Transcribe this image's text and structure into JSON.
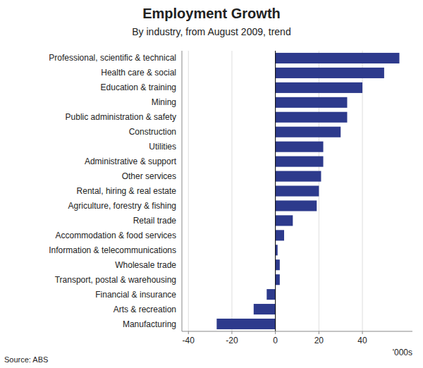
{
  "chart_data": {
    "type": "bar",
    "orientation": "horizontal",
    "title": "Employment Growth",
    "subtitle": "By industry, from August 2009, trend",
    "source": "Source: ABS",
    "xlabel": "'000s",
    "categories": [
      "Professional, scientific & technical",
      "Health care & social",
      "Education & training",
      "Mining",
      "Public administration & safety",
      "Construction",
      "Utilities",
      "Administrative & support",
      "Other services",
      "Rental, hiring & real estate",
      "Agriculture, forestry & fishing",
      "Retail trade",
      "Accommodation & food services",
      "Information & telecommunications",
      "Wholesale trade",
      "Transport, postal & warehousing",
      "Financial & insurance",
      "Arts & recreation",
      "Manufacturing"
    ],
    "values": [
      57,
      50,
      40,
      33,
      33,
      30,
      22,
      22,
      21,
      20,
      19,
      8,
      4,
      1,
      2,
      2,
      -4,
      -10,
      -27
    ],
    "color": "#2d3a8c",
    "xlim": [
      -43,
      63
    ],
    "xticks": [
      -40,
      -20,
      0,
      20,
      40
    ],
    "grid": true
  }
}
